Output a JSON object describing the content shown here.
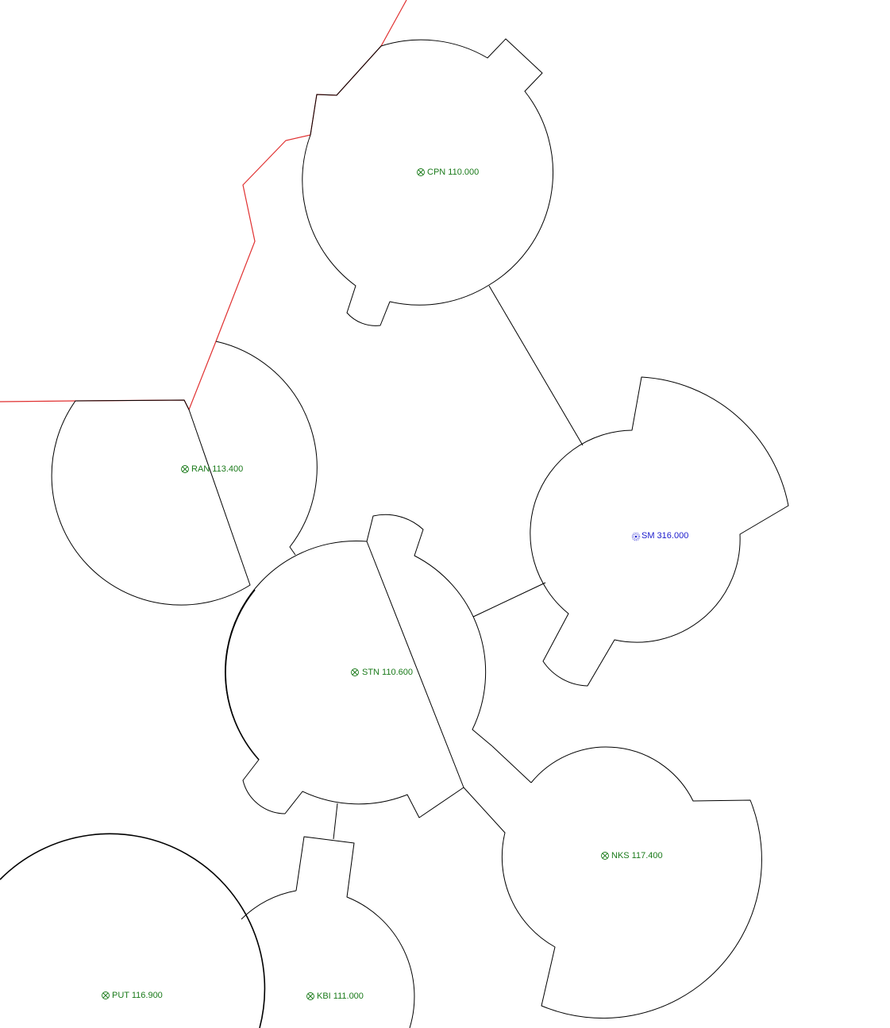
{
  "colors": {
    "vor_label": "#1a7a1a",
    "ndb_label": "#1a1acc",
    "boundary_line": "#e03030",
    "area_outline": "#000000",
    "background": "#ffffff"
  },
  "stations": [
    {
      "id": "CPN",
      "label": "CPN 110.000",
      "type": "vor",
      "icon": "vor-icon"
    },
    {
      "id": "RAN",
      "label": "RAN 113.400",
      "type": "vor",
      "icon": "vor-icon"
    },
    {
      "id": "SM",
      "label": "SM 316.000",
      "type": "ndb",
      "icon": "ndb-icon"
    },
    {
      "id": "STN",
      "label": "STN 110.600",
      "type": "vor",
      "icon": "vor-icon"
    },
    {
      "id": "NKS",
      "label": "NKS 117.400",
      "type": "vor",
      "icon": "vor-icon"
    },
    {
      "id": "PUT",
      "label": "PUT 116.900",
      "type": "vor",
      "icon": "vor-icon"
    },
    {
      "id": "KBI",
      "label": "KBI 111.000",
      "type": "vor",
      "icon": "vor-icon"
    }
  ]
}
